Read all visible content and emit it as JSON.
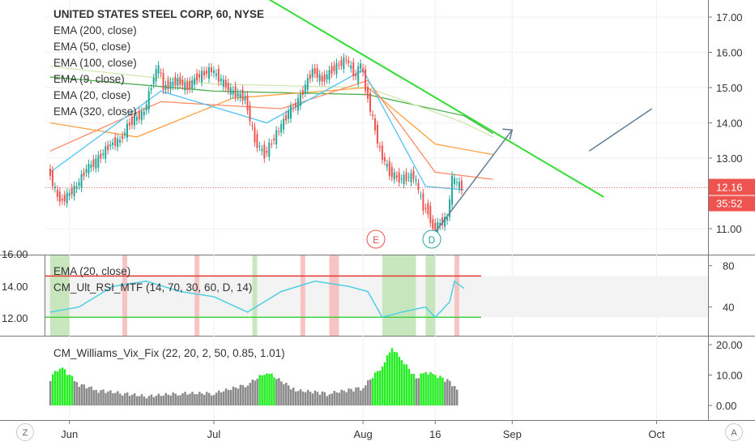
{
  "header": {
    "title": "UNITED STATES STEEL CORP, 60, NYSE",
    "indicators": [
      "EMA (200, close)",
      "EMA (50, close)",
      "EMA (100, close)",
      "EMA (9, close)",
      "EMA (20, close)",
      "EMA (320, close)"
    ]
  },
  "pane2": {
    "indicators": [
      "EMA (20, close)",
      "CM_Ult_RSI_MTF (14, 70, 30, 60, D, 14)"
    ],
    "left_ticks": [
      "16.00",
      "14.00",
      "12.00"
    ],
    "right_ticks": [
      "80",
      "40"
    ]
  },
  "pane3": {
    "indicator": "CM_Williams_Vix_Fix (22, 20, 2, 50, 0.85, 1.01)",
    "right_ticks": [
      "20.00",
      "10.00",
      "0.00"
    ]
  },
  "corner": {
    "left": "Z",
    "right": "A"
  },
  "markers": {
    "e": "E",
    "d": "D"
  },
  "chart_data": {
    "type": "candlestick",
    "price_axis_ticks": [
      "17.00",
      "16.00",
      "15.00",
      "14.00",
      "13.00",
      "12.16",
      "11.00"
    ],
    "time_axis_ticks": [
      "Jun",
      "Jul",
      "Aug",
      "16",
      "Sep",
      "Oct"
    ],
    "last_price": "12.16",
    "countdown": "35:52",
    "price_path": [
      [
        "2019-05-28",
        12.7
      ],
      [
        "2019-05-30",
        11.9
      ],
      [
        "2019-05-31",
        11.8
      ],
      [
        "2019-06-03",
        12.2
      ],
      [
        "2019-06-05",
        12.7
      ],
      [
        "2019-06-07",
        12.9
      ],
      [
        "2019-06-10",
        13.4
      ],
      [
        "2019-06-12",
        13.5
      ],
      [
        "2019-06-14",
        14.0
      ],
      [
        "2019-06-17",
        14.3
      ],
      [
        "2019-06-19",
        15.3
      ],
      [
        "2019-06-20",
        15.6
      ],
      [
        "2019-06-21",
        15.0
      ],
      [
        "2019-06-24",
        15.2
      ],
      [
        "2019-06-26",
        15.0
      ],
      [
        "2019-06-28",
        15.3
      ],
      [
        "2019-07-01",
        15.5
      ],
      [
        "2019-07-03",
        15.2
      ],
      [
        "2019-07-05",
        14.9
      ],
      [
        "2019-07-08",
        14.7
      ],
      [
        "2019-07-10",
        13.5
      ],
      [
        "2019-07-12",
        13.1
      ],
      [
        "2019-07-15",
        13.8
      ],
      [
        "2019-07-17",
        14.3
      ],
      [
        "2019-07-19",
        14.6
      ],
      [
        "2019-07-22",
        15.5
      ],
      [
        "2019-07-24",
        15.2
      ],
      [
        "2019-07-26",
        15.5
      ],
      [
        "2019-07-29",
        15.8
      ],
      [
        "2019-07-31",
        15.3
      ],
      [
        "2019-08-01",
        15.7
      ],
      [
        "2019-08-02",
        15.0
      ],
      [
        "2019-08-05",
        13.2
      ],
      [
        "2019-08-07",
        12.6
      ],
      [
        "2019-08-09",
        12.4
      ],
      [
        "2019-08-12",
        12.5
      ],
      [
        "2019-08-13",
        12.1
      ],
      [
        "2019-08-14",
        11.6
      ],
      [
        "2019-08-15",
        11.5
      ],
      [
        "2019-08-16",
        11.0
      ],
      [
        "2019-08-19",
        11.3
      ],
      [
        "2019-08-20",
        12.4
      ],
      [
        "2019-08-21",
        12.3
      ],
      [
        "2019-08-22",
        12.16
      ]
    ],
    "ema_lines": [
      {
        "name": "EMA (320, close)",
        "color": "#4caf50",
        "points": [
          [
            "2019-05-28",
            15.3
          ],
          [
            "2019-07-01",
            14.9
          ],
          [
            "2019-08-02",
            14.8
          ],
          [
            "2019-08-22",
            14.2
          ],
          [
            "2019-08-28",
            13.7
          ]
        ]
      },
      {
        "name": "EMA (200, close)",
        "color": "#d0e8b0",
        "points": [
          [
            "2019-05-28",
            15.6
          ],
          [
            "2019-07-01",
            15.1
          ],
          [
            "2019-08-02",
            15.0
          ],
          [
            "2019-08-22",
            14.0
          ],
          [
            "2019-08-28",
            13.6
          ]
        ]
      },
      {
        "name": "EMA (100, close)",
        "color": "#ffa040",
        "points": [
          [
            "2019-05-28",
            14.0
          ],
          [
            "2019-06-15",
            13.6
          ],
          [
            "2019-07-05",
            14.7
          ],
          [
            "2019-08-02",
            15.0
          ],
          [
            "2019-08-16",
            13.4
          ],
          [
            "2019-08-28",
            13.1
          ]
        ]
      },
      {
        "name": "EMA (50, close)",
        "color": "#ff8a65",
        "points": [
          [
            "2019-05-28",
            13.2
          ],
          [
            "2019-06-20",
            14.6
          ],
          [
            "2019-07-15",
            14.4
          ],
          [
            "2019-08-02",
            15.2
          ],
          [
            "2019-08-16",
            12.6
          ],
          [
            "2019-08-28",
            12.4
          ]
        ]
      },
      {
        "name": "EMA (20, close)",
        "color": "#4fc3f7",
        "points": [
          [
            "2019-05-28",
            12.6
          ],
          [
            "2019-06-20",
            14.9
          ],
          [
            "2019-07-12",
            14.0
          ],
          [
            "2019-08-01",
            15.5
          ],
          [
            "2019-08-14",
            12.2
          ],
          [
            "2019-08-22",
            12.1
          ]
        ]
      }
    ],
    "trendline": {
      "color": "#33dd33",
      "from": [
        "2019-07-10",
        17.7
      ],
      "to": [
        "2019-09-20",
        11.9
      ]
    },
    "projection_arrows": [
      {
        "color": "#5f7d95",
        "from": [
          "2019-08-16",
          10.9
        ],
        "to": [
          "2019-09-01",
          13.8
        ]
      },
      {
        "color": "#5f7d95",
        "from": [
          "2019-09-17",
          13.2
        ],
        "to": [
          "2019-09-30",
          14.4
        ]
      }
    ],
    "rsi": {
      "upper": 70,
      "lower": 30,
      "path": [
        [
          "2019-05-28",
          35
        ],
        [
          "2019-06-03",
          40
        ],
        [
          "2019-06-10",
          60
        ],
        [
          "2019-06-17",
          65
        ],
        [
          "2019-06-24",
          55
        ],
        [
          "2019-07-01",
          50
        ],
        [
          "2019-07-08",
          35
        ],
        [
          "2019-07-15",
          55
        ],
        [
          "2019-07-22",
          65
        ],
        [
          "2019-07-29",
          60
        ],
        [
          "2019-08-02",
          55
        ],
        [
          "2019-08-05",
          30
        ],
        [
          "2019-08-09",
          35
        ],
        [
          "2019-08-14",
          40
        ],
        [
          "2019-08-16",
          30
        ],
        [
          "2019-08-19",
          45
        ],
        [
          "2019-08-20",
          65
        ],
        [
          "2019-08-22",
          58
        ]
      ]
    },
    "vix_fix": {
      "ylim": [
        0,
        20
      ],
      "bars": [
        [
          "2019-05-28",
          8
        ],
        [
          "2019-05-30",
          12
        ],
        [
          "2019-06-03",
          6
        ],
        [
          "2019-06-07",
          4
        ],
        [
          "2019-06-12",
          3
        ],
        [
          "2019-06-17",
          2
        ],
        [
          "2019-06-24",
          3
        ],
        [
          "2019-07-01",
          3
        ],
        [
          "2019-07-08",
          6
        ],
        [
          "2019-07-12",
          10
        ],
        [
          "2019-07-18",
          4
        ],
        [
          "2019-07-25",
          3
        ],
        [
          "2019-08-01",
          5
        ],
        [
          "2019-08-05",
          12
        ],
        [
          "2019-08-07",
          18
        ],
        [
          "2019-08-09",
          14
        ],
        [
          "2019-08-12",
          8
        ],
        [
          "2019-08-14",
          10
        ],
        [
          "2019-08-16",
          9
        ],
        [
          "2019-08-19",
          7
        ],
        [
          "2019-08-21",
          3
        ]
      ]
    }
  }
}
